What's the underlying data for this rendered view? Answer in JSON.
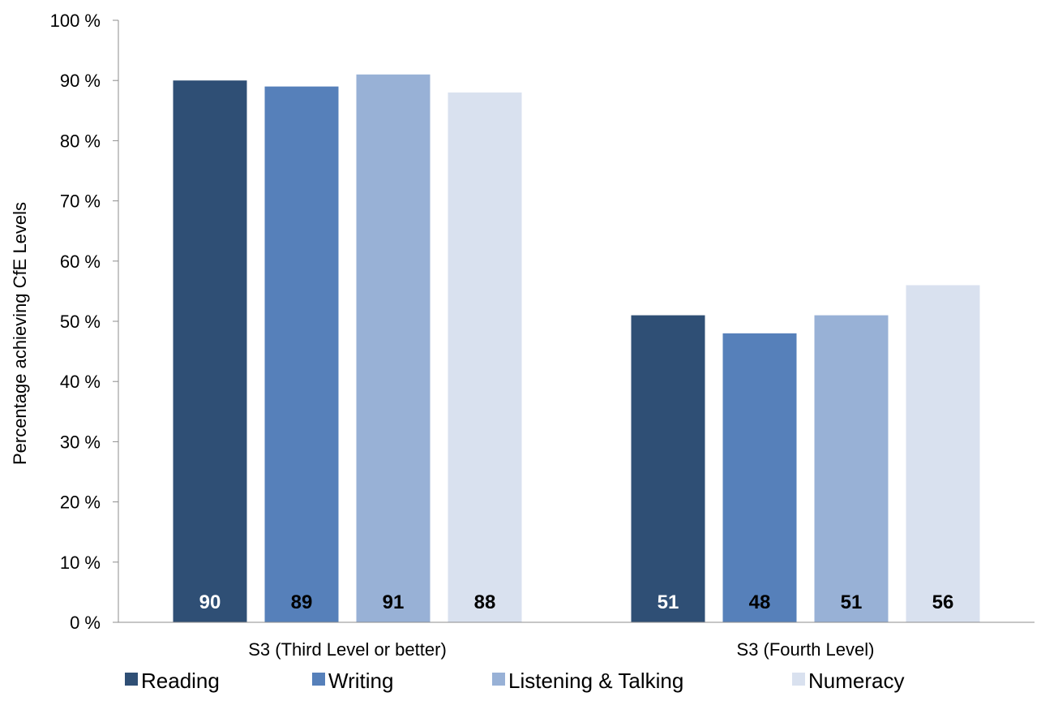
{
  "chart_data": {
    "type": "bar",
    "title": "",
    "xlabel": "",
    "ylabel": "Percentage achieving CfE Levels",
    "ylim": [
      0,
      100
    ],
    "y_ticks": [
      "0 %",
      "10 %",
      "20 %",
      "30 %",
      "40 %",
      "50 %",
      "60 %",
      "70 %",
      "80 %",
      "90 %",
      "100 %"
    ],
    "categories": [
      "S3 (Third Level or better)",
      "S3 (Fourth Level)"
    ],
    "series": [
      {
        "name": "Reading",
        "color": "#2F4F75",
        "label_color": "#FFFFFF",
        "values": [
          90,
          51
        ],
        "labels": [
          "90",
          "51"
        ]
      },
      {
        "name": "Writing",
        "color": "#5680BA",
        "label_color": "#000000",
        "values": [
          89,
          48
        ],
        "labels": [
          "89",
          "48"
        ]
      },
      {
        "name": "Listening & Talking",
        "color": "#98B1D6",
        "label_color": "#000000",
        "values": [
          91,
          51
        ],
        "labels": [
          "91",
          "51"
        ]
      },
      {
        "name": "Numeracy",
        "color": "#D9E1EF",
        "label_color": "#000000",
        "values": [
          88,
          56
        ],
        "labels": [
          "88",
          "56"
        ]
      }
    ],
    "grid": false,
    "legend_position": "bottom"
  }
}
